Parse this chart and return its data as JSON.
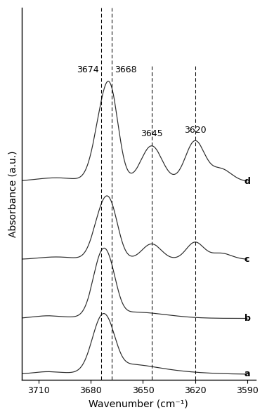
{
  "x_min": 3590,
  "x_max": 3720,
  "xticks": [
    3710,
    3680,
    3650,
    3620,
    3590
  ],
  "xlabel": "Wavenumber (cm⁻¹)",
  "ylabel": "Absorbance (a.u.)",
  "dashed_lines_full": [
    3674,
    3668
  ],
  "dashed_lines_partial": [
    3645,
    3620
  ],
  "peak_labels": [
    {
      "label": "3674",
      "x": 3674,
      "xtext": 3676,
      "ha": "right"
    },
    {
      "label": "3668",
      "x": 3668,
      "xtext": 3666,
      "ha": "left"
    },
    {
      "label": "3645",
      "x": 3645,
      "xtext": 3645,
      "ha": "center"
    },
    {
      "label": "3620",
      "x": 3620,
      "xtext": 3620,
      "ha": "center"
    }
  ],
  "curve_labels": [
    "a",
    "b",
    "c",
    "d"
  ],
  "offsets": [
    0.0,
    0.18,
    0.37,
    0.62
  ],
  "line_color": "#2a2a2a",
  "background_color": "#ffffff"
}
